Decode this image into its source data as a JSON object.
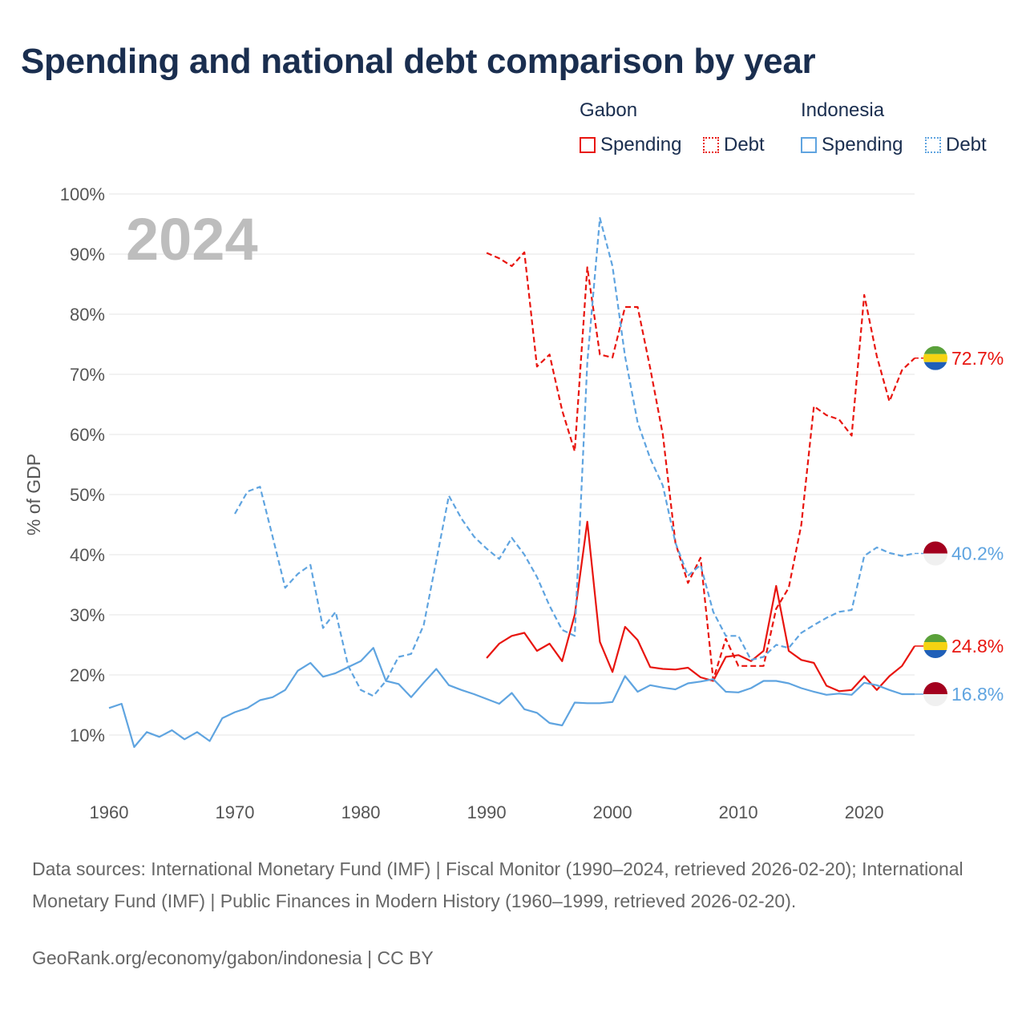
{
  "title": "Spending and national debt comparison by year",
  "year_label": "2024",
  "legend": {
    "groups": [
      {
        "name": "Gabon",
        "items": [
          {
            "label": "Spending",
            "style": "solid",
            "color": "#e8150f"
          },
          {
            "label": "Debt",
            "style": "dotted",
            "color": "#e8150f"
          }
        ]
      },
      {
        "name": "Indonesia",
        "items": [
          {
            "label": "Spending",
            "style": "solid",
            "color": "#5fa4e0"
          },
          {
            "label": "Debt",
            "style": "dotted",
            "color": "#5fa4e0"
          }
        ]
      }
    ]
  },
  "sources_text": "Data sources: International Monetary Fund (IMF) | Fiscal Monitor (1990–2024, retrieved 2026-02-20); International Monetary Fund (IMF) | Public Finances in Modern History (1960–1999, retrieved 2026-02-20).",
  "credit_text": "GeoRank.org/economy/gabon/indonesia | CC BY",
  "chart_data": {
    "type": "line",
    "title": "Spending and national debt comparison by year",
    "xlabel": "",
    "ylabel": "% of GDP",
    "xlim": [
      1960,
      2024
    ],
    "ylim": [
      0,
      100
    ],
    "x_ticks": [
      1960,
      1970,
      1980,
      1990,
      2000,
      2010,
      2020
    ],
    "y_ticks": [
      10,
      20,
      30,
      40,
      50,
      60,
      70,
      80,
      90,
      100
    ],
    "y_tick_labels": [
      "10%",
      "20%",
      "30%",
      "40%",
      "50%",
      "60%",
      "70%",
      "80%",
      "90%",
      "100%"
    ],
    "grid": true,
    "series": [
      {
        "name": "Gabon Debt",
        "country": "Gabon",
        "metric": "Debt",
        "color": "#e8150f",
        "dashed": true,
        "end_label": "72.7%",
        "flag": "gabon",
        "x": [
          1990,
          1991,
          1992,
          1993,
          1994,
          1995,
          1996,
          1997,
          1998,
          1999,
          2000,
          2001,
          2002,
          2003,
          2004,
          2005,
          2006,
          2007,
          2008,
          2009,
          2010,
          2011,
          2012,
          2013,
          2014,
          2015,
          2016,
          2017,
          2018,
          2019,
          2020,
          2021,
          2022,
          2023,
          2024
        ],
        "values": [
          90.2,
          89.3,
          88.0,
          90.3,
          71.3,
          73.3,
          64.0,
          57.2,
          87.8,
          73.3,
          72.8,
          81.2,
          81.2,
          71.0,
          60.0,
          42.0,
          35.3,
          39.5,
          19.2,
          26.0,
          21.5,
          21.5,
          21.5,
          31.0,
          34.5,
          45.0,
          64.7,
          63.2,
          62.5,
          59.8,
          83.2,
          73.0,
          65.5,
          70.7,
          72.7
        ]
      },
      {
        "name": "Gabon Spending",
        "country": "Gabon",
        "metric": "Spending",
        "color": "#e8150f",
        "dashed": false,
        "end_label": "24.8%",
        "flag": "gabon",
        "x": [
          1990,
          1991,
          1992,
          1993,
          1994,
          1995,
          1996,
          1997,
          1998,
          1999,
          2000,
          2001,
          2002,
          2003,
          2004,
          2005,
          2006,
          2007,
          2008,
          2009,
          2010,
          2011,
          2012,
          2013,
          2014,
          2015,
          2016,
          2017,
          2018,
          2019,
          2020,
          2021,
          2022,
          2023,
          2024
        ],
        "values": [
          22.8,
          25.2,
          26.5,
          27.0,
          24.0,
          25.2,
          22.3,
          30.0,
          45.5,
          25.5,
          20.5,
          28.0,
          25.8,
          21.3,
          21.0,
          20.9,
          21.2,
          19.6,
          19.0,
          23.0,
          23.3,
          22.3,
          24.0,
          34.8,
          24.0,
          22.5,
          22.0,
          18.2,
          17.3,
          17.5,
          19.8,
          17.5,
          19.8,
          21.5,
          24.8
        ]
      },
      {
        "name": "Indonesia Debt",
        "country": "Indonesia",
        "metric": "Debt",
        "color": "#5fa4e0",
        "dashed": true,
        "end_label": "40.2%",
        "flag": "indonesia",
        "x": [
          1970,
          1971,
          1972,
          1973,
          1974,
          1975,
          1976,
          1977,
          1978,
          1979,
          1980,
          1981,
          1982,
          1983,
          1984,
          1985,
          1986,
          1987,
          1988,
          1989,
          1990,
          1991,
          1992,
          1993,
          1994,
          1995,
          1996,
          1997,
          1998,
          1999,
          2000,
          2001,
          2002,
          2003,
          2004,
          2005,
          2006,
          2007,
          2008,
          2009,
          2010,
          2011,
          2012,
          2013,
          2014,
          2015,
          2016,
          2017,
          2018,
          2019,
          2020,
          2021,
          2022,
          2023,
          2024
        ],
        "values": [
          46.8,
          50.5,
          51.3,
          43.0,
          34.5,
          36.8,
          38.3,
          27.8,
          30.5,
          21.5,
          17.5,
          16.5,
          19.0,
          23.0,
          23.5,
          28.3,
          39.0,
          49.8,
          46.0,
          43.0,
          41.0,
          39.3,
          42.8,
          40.0,
          36.3,
          31.5,
          27.5,
          26.5,
          72.0,
          96.0,
          88.0,
          73.0,
          62.0,
          56.0,
          51.5,
          42.0,
          36.5,
          38.3,
          30.5,
          26.5,
          26.5,
          22.5,
          23.0,
          25.0,
          24.5,
          27.0,
          28.3,
          29.5,
          30.5,
          30.8,
          39.8,
          41.2,
          40.3,
          39.8,
          40.2
        ]
      },
      {
        "name": "Indonesia Spending",
        "country": "Indonesia",
        "metric": "Spending",
        "color": "#5fa4e0",
        "dashed": false,
        "end_label": "16.8%",
        "flag": "indonesia",
        "x": [
          1960,
          1961,
          1962,
          1963,
          1964,
          1965,
          1966,
          1967,
          1968,
          1969,
          1970,
          1971,
          1972,
          1973,
          1974,
          1975,
          1976,
          1977,
          1978,
          1979,
          1980,
          1981,
          1982,
          1983,
          1984,
          1985,
          1986,
          1987,
          1988,
          1989,
          1990,
          1991,
          1992,
          1993,
          1994,
          1995,
          1996,
          1997,
          1998,
          1999,
          2000,
          2001,
          2002,
          2003,
          2004,
          2005,
          2006,
          2007,
          2008,
          2009,
          2010,
          2011,
          2012,
          2013,
          2014,
          2015,
          2016,
          2017,
          2018,
          2019,
          2020,
          2021,
          2022,
          2023,
          2024
        ],
        "values": [
          14.5,
          15.2,
          8.0,
          10.5,
          9.7,
          10.8,
          9.3,
          10.5,
          9.0,
          12.8,
          13.8,
          14.5,
          15.8,
          16.3,
          17.5,
          20.7,
          22.0,
          19.7,
          20.3,
          21.3,
          22.3,
          24.5,
          19.0,
          18.5,
          16.3,
          18.7,
          21.0,
          18.3,
          17.5,
          16.8,
          16.0,
          15.2,
          17.0,
          14.3,
          13.7,
          12.0,
          11.6,
          15.4,
          15.3,
          15.3,
          15.5,
          19.8,
          17.2,
          18.3,
          17.9,
          17.6,
          18.6,
          18.9,
          19.3,
          17.2,
          17.1,
          17.8,
          19.0,
          19.0,
          18.6,
          17.8,
          17.2,
          16.7,
          16.9,
          16.7,
          18.7,
          18.3,
          17.5,
          16.8,
          16.8
        ]
      }
    ]
  }
}
